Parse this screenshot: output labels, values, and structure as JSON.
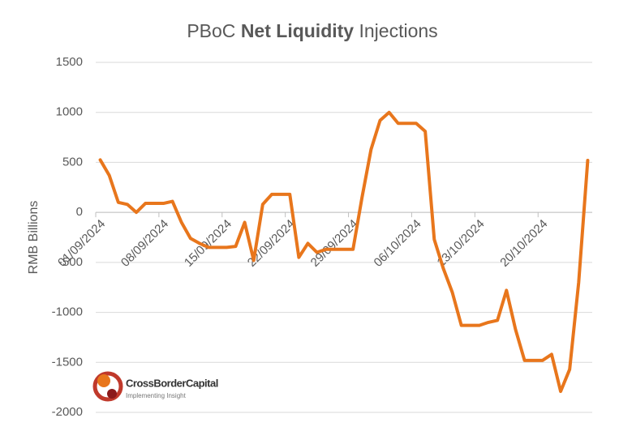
{
  "chart_data": {
    "type": "line",
    "title": [
      "PBoC",
      "Net Liquidity",
      "Injections"
    ],
    "y_label": "RMB Billions",
    "categories": [
      "01/09/2024",
      null,
      null,
      null,
      null,
      null,
      null,
      "08/09/2024",
      null,
      null,
      null,
      null,
      null,
      null,
      "15/09/2024",
      null,
      null,
      null,
      null,
      null,
      null,
      "22/09/2024",
      null,
      null,
      null,
      null,
      null,
      null,
      "29/09/2024",
      null,
      null,
      null,
      null,
      null,
      null,
      "06/10/2024",
      null,
      null,
      null,
      null,
      null,
      null,
      "13/10/2024",
      null,
      null,
      null,
      null,
      null,
      null,
      "20/10/2024",
      null,
      null,
      null,
      null,
      null
    ],
    "series": [
      {
        "name": "Net Liquidity Injections",
        "color": "#e8761c",
        "values": [
          525,
          370,
          100,
          80,
          0,
          90,
          90,
          90,
          110,
          -100,
          -260,
          -310,
          -350,
          -350,
          -350,
          -340,
          -100,
          -480,
          80,
          180,
          180,
          180,
          -450,
          -310,
          -400,
          -370,
          -370,
          -370,
          -370,
          150,
          630,
          920,
          1000,
          890,
          890,
          890,
          810,
          -270,
          -560,
          -800,
          -1130,
          -1130,
          -1130,
          -1100,
          -1080,
          -780,
          -1170,
          -1480,
          -1480,
          -1480,
          -1420,
          -1790,
          -1570,
          -700,
          520
        ]
      }
    ],
    "ylim": [
      -2000,
      1500
    ],
    "yticks": [
      -2000,
      -1500,
      -1000,
      -500,
      0,
      500,
      1000,
      1500
    ],
    "grid": true,
    "logo": {
      "name": "CrossBorderCapital",
      "tagline": "Implementing Insight"
    }
  }
}
